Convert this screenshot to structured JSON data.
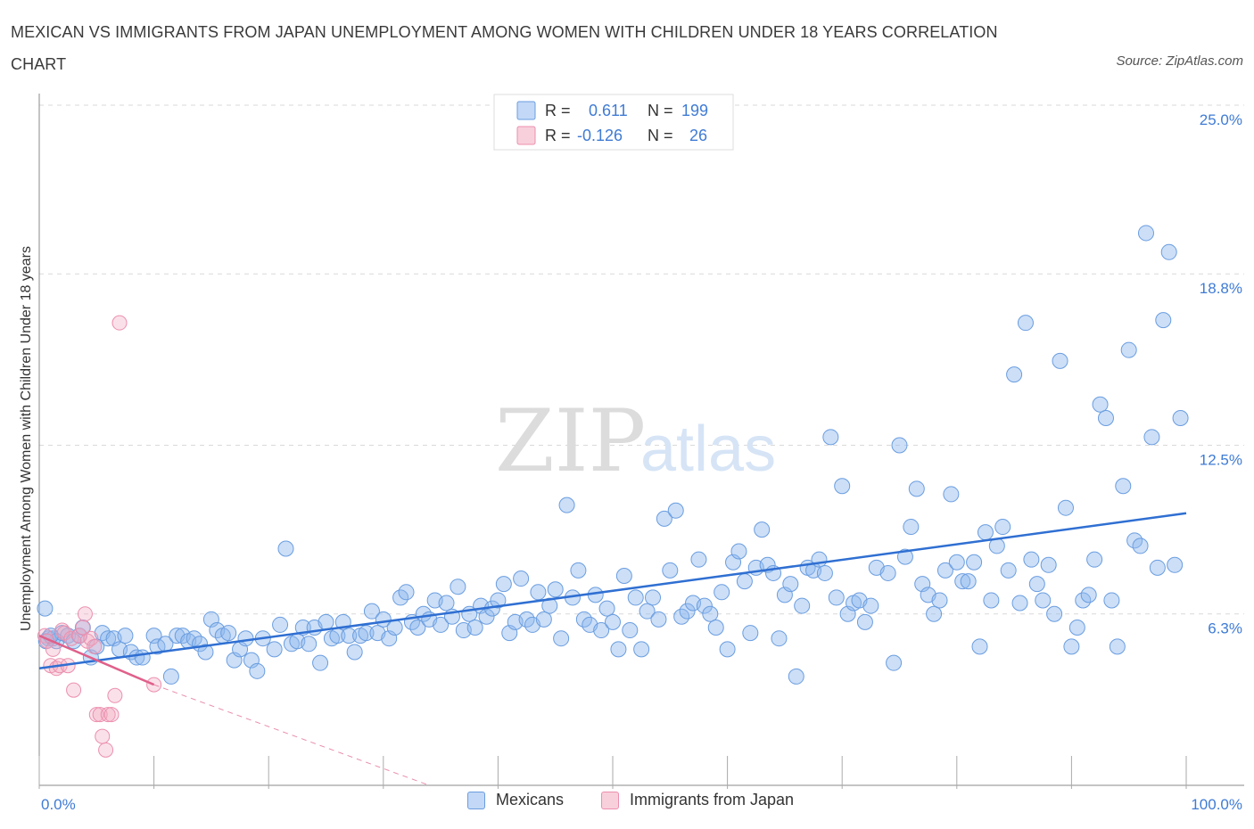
{
  "title": "MEXICAN VS IMMIGRANTS FROM JAPAN UNEMPLOYMENT AMONG WOMEN WITH CHILDREN UNDER 18 YEARS CORRELATION CHART",
  "source": "Source: ZipAtlas.com",
  "watermark": {
    "zip": "ZIP",
    "atlas": "atlas"
  },
  "legend": {
    "rows": [
      {
        "r_label": "R =",
        "r_value": "0.611",
        "n_label": "N =",
        "n_value": "199",
        "color": "#8fb8ee"
      },
      {
        "r_label": "R =",
        "r_value": "-0.126",
        "n_label": "N =",
        "n_value": "26",
        "color": "#f2a9c0"
      }
    ]
  },
  "bottom_legend": [
    {
      "label": "Mexicans",
      "color": "#8fb8ee"
    },
    {
      "label": "Immigrants from Japan",
      "color": "#f2a9c0"
    }
  ],
  "colors": {
    "blue_fill": "rgba(143,184,238,0.45)",
    "blue_stroke": "#6a9de0",
    "blue_line": "#2f6fd2",
    "pink_fill": "rgba(242,169,192,0.35)",
    "pink_stroke": "#ec8fae",
    "pink_line": "#e0608a",
    "accent_text": "#3f7bd4",
    "grid": "#d9d9d9"
  },
  "chart_data": {
    "type": "scatter",
    "title": "MEXICAN VS IMMIGRANTS FROM JAPAN UNEMPLOYMENT AMONG WOMEN WITH CHILDREN UNDER 18 YEARS CORRELATION CHART",
    "xlabel": "",
    "ylabel": "Unemployment Among Women with Children Under 18 years",
    "xlim": [
      0,
      100
    ],
    "ylim": [
      0,
      25
    ],
    "x_tick_labels": [
      "0.0%",
      "100.0%"
    ],
    "y_ticks": [
      6.3,
      12.5,
      18.8,
      25.0
    ],
    "y_tick_labels": [
      "6.3%",
      "12.5%",
      "18.8%",
      "25.0%"
    ],
    "grid": true,
    "legend_position": "top-center",
    "series": [
      {
        "name": "Mexicans",
        "R": 0.611,
        "N": 199,
        "trend": {
          "x": [
            0,
            100
          ],
          "y": [
            4.3,
            10.0
          ]
        },
        "points": [
          [
            0.5,
            6.5
          ],
          [
            0.8,
            5.4
          ],
          [
            1.2,
            5.4
          ],
          [
            1.5,
            5.3
          ],
          [
            2.0,
            5.6
          ],
          [
            2.5,
            5.5
          ],
          [
            3.0,
            5.3
          ],
          [
            3.5,
            5.5
          ],
          [
            3.8,
            5.8
          ],
          [
            4.5,
            4.7
          ],
          [
            5.0,
            5.1
          ],
          [
            5.5,
            5.6
          ],
          [
            6.0,
            5.4
          ],
          [
            6.5,
            5.4
          ],
          [
            7.0,
            5.0
          ],
          [
            7.5,
            5.5
          ],
          [
            8.0,
            4.9
          ],
          [
            8.5,
            4.7
          ],
          [
            9.0,
            4.7
          ],
          [
            10.0,
            5.5
          ],
          [
            10.3,
            5.1
          ],
          [
            11.0,
            5.2
          ],
          [
            11.5,
            4.0
          ],
          [
            12.0,
            5.5
          ],
          [
            12.5,
            5.5
          ],
          [
            13.0,
            5.3
          ],
          [
            13.5,
            5.4
          ],
          [
            14.0,
            5.2
          ],
          [
            14.5,
            4.9
          ],
          [
            15.0,
            6.1
          ],
          [
            15.5,
            5.7
          ],
          [
            16.0,
            5.5
          ],
          [
            16.5,
            5.6
          ],
          [
            17.0,
            4.6
          ],
          [
            17.5,
            5.0
          ],
          [
            18.0,
            5.4
          ],
          [
            18.5,
            4.6
          ],
          [
            19.0,
            4.2
          ],
          [
            19.5,
            5.4
          ],
          [
            20.5,
            5.0
          ],
          [
            21.0,
            5.9
          ],
          [
            21.5,
            8.7
          ],
          [
            22.0,
            5.2
          ],
          [
            22.5,
            5.3
          ],
          [
            23.0,
            5.8
          ],
          [
            23.5,
            5.2
          ],
          [
            24.0,
            5.8
          ],
          [
            24.5,
            4.5
          ],
          [
            25.0,
            6.0
          ],
          [
            25.5,
            5.4
          ],
          [
            26.0,
            5.5
          ],
          [
            26.5,
            6.0
          ],
          [
            27.0,
            5.5
          ],
          [
            27.5,
            4.9
          ],
          [
            28.0,
            5.5
          ],
          [
            28.5,
            5.6
          ],
          [
            29.0,
            6.4
          ],
          [
            29.5,
            5.6
          ],
          [
            30.0,
            6.1
          ],
          [
            30.5,
            5.4
          ],
          [
            31.0,
            5.8
          ],
          [
            31.5,
            6.9
          ],
          [
            32.0,
            7.1
          ],
          [
            32.5,
            6.0
          ],
          [
            33.0,
            5.8
          ],
          [
            33.5,
            6.3
          ],
          [
            34.0,
            6.1
          ],
          [
            34.5,
            6.8
          ],
          [
            35.0,
            5.9
          ],
          [
            35.5,
            6.7
          ],
          [
            36.0,
            6.2
          ],
          [
            36.5,
            7.3
          ],
          [
            37.0,
            5.7
          ],
          [
            37.5,
            6.3
          ],
          [
            38.0,
            5.8
          ],
          [
            38.5,
            6.6
          ],
          [
            39.0,
            6.2
          ],
          [
            39.5,
            6.5
          ],
          [
            40.0,
            6.8
          ],
          [
            40.5,
            7.4
          ],
          [
            41.0,
            5.6
          ],
          [
            41.5,
            6.0
          ],
          [
            42.0,
            7.6
          ],
          [
            42.5,
            6.1
          ],
          [
            43.0,
            5.9
          ],
          [
            43.5,
            7.1
          ],
          [
            44.0,
            6.1
          ],
          [
            44.5,
            6.6
          ],
          [
            45.0,
            7.2
          ],
          [
            45.5,
            5.4
          ],
          [
            46.0,
            10.3
          ],
          [
            46.5,
            6.9
          ],
          [
            47.0,
            7.9
          ],
          [
            47.5,
            6.1
          ],
          [
            48.0,
            5.9
          ],
          [
            48.5,
            7.0
          ],
          [
            49.0,
            5.7
          ],
          [
            49.5,
            6.5
          ],
          [
            50.0,
            6.0
          ],
          [
            50.5,
            5.0
          ],
          [
            51.0,
            7.7
          ],
          [
            51.5,
            5.7
          ],
          [
            52.0,
            6.9
          ],
          [
            52.5,
            5.0
          ],
          [
            53.0,
            6.4
          ],
          [
            53.5,
            6.9
          ],
          [
            54.0,
            6.1
          ],
          [
            54.5,
            9.8
          ],
          [
            55.0,
            7.9
          ],
          [
            55.5,
            10.1
          ],
          [
            56.0,
            6.2
          ],
          [
            56.5,
            6.4
          ],
          [
            57.0,
            6.7
          ],
          [
            57.5,
            8.3
          ],
          [
            58.0,
            6.6
          ],
          [
            58.5,
            6.3
          ],
          [
            59.0,
            5.8
          ],
          [
            59.5,
            7.1
          ],
          [
            60.0,
            5.0
          ],
          [
            60.5,
            8.2
          ],
          [
            61.0,
            8.6
          ],
          [
            61.5,
            7.5
          ],
          [
            62.0,
            5.6
          ],
          [
            62.5,
            8.0
          ],
          [
            63.0,
            9.4
          ],
          [
            63.5,
            8.1
          ],
          [
            64.0,
            7.8
          ],
          [
            64.5,
            5.4
          ],
          [
            65.0,
            7.0
          ],
          [
            65.5,
            7.4
          ],
          [
            66.0,
            4.0
          ],
          [
            66.5,
            6.6
          ],
          [
            67.0,
            8.0
          ],
          [
            67.5,
            7.9
          ],
          [
            68.0,
            8.3
          ],
          [
            68.5,
            7.8
          ],
          [
            69.0,
            12.8
          ],
          [
            69.5,
            6.9
          ],
          [
            70.0,
            11.0
          ],
          [
            70.5,
            6.3
          ],
          [
            71.0,
            6.7
          ],
          [
            71.5,
            6.8
          ],
          [
            72.0,
            6.0
          ],
          [
            72.5,
            6.6
          ],
          [
            73.0,
            8.0
          ],
          [
            74.0,
            7.8
          ],
          [
            74.5,
            4.5
          ],
          [
            75.0,
            12.5
          ],
          [
            75.5,
            8.4
          ],
          [
            76.0,
            9.5
          ],
          [
            76.5,
            10.9
          ],
          [
            77.0,
            7.4
          ],
          [
            77.5,
            7.0
          ],
          [
            78.0,
            6.3
          ],
          [
            78.5,
            6.8
          ],
          [
            79.0,
            7.9
          ],
          [
            79.5,
            10.7
          ],
          [
            80.0,
            8.2
          ],
          [
            80.5,
            7.5
          ],
          [
            81.0,
            7.5
          ],
          [
            81.5,
            8.2
          ],
          [
            82.0,
            5.1
          ],
          [
            82.5,
            9.3
          ],
          [
            83.0,
            6.8
          ],
          [
            83.5,
            8.8
          ],
          [
            84.0,
            9.5
          ],
          [
            84.5,
            7.9
          ],
          [
            85.0,
            15.1
          ],
          [
            85.5,
            6.7
          ],
          [
            86.0,
            17.0
          ],
          [
            86.5,
            8.3
          ],
          [
            87.0,
            7.4
          ],
          [
            87.5,
            6.8
          ],
          [
            88.0,
            8.1
          ],
          [
            88.5,
            6.3
          ],
          [
            89.0,
            15.6
          ],
          [
            89.5,
            10.2
          ],
          [
            90.0,
            5.1
          ],
          [
            90.5,
            5.8
          ],
          [
            91.0,
            6.8
          ],
          [
            91.5,
            7.0
          ],
          [
            92.0,
            8.3
          ],
          [
            92.5,
            14.0
          ],
          [
            93.0,
            13.5
          ],
          [
            93.5,
            6.8
          ],
          [
            94.0,
            5.1
          ],
          [
            94.5,
            11.0
          ],
          [
            95.0,
            16.0
          ],
          [
            95.5,
            9.0
          ],
          [
            96.0,
            8.8
          ],
          [
            96.5,
            20.3
          ],
          [
            97.0,
            12.8
          ],
          [
            97.5,
            8.0
          ],
          [
            98.0,
            17.1
          ],
          [
            98.5,
            19.6
          ],
          [
            99.0,
            8.1
          ],
          [
            99.5,
            13.5
          ],
          [
            0.6,
            5.3
          ],
          [
            1.0,
            5.5
          ]
        ]
      },
      {
        "name": "Immigrants from Japan",
        "R": -0.126,
        "N": 26,
        "trend": {
          "x": [
            0,
            10
          ],
          "y": [
            5.5,
            3.7
          ]
        },
        "trend_extension": {
          "x": [
            10,
            34
          ],
          "y": [
            3.7,
            0
          ]
        },
        "points": [
          [
            0.5,
            5.5
          ],
          [
            0.7,
            5.3
          ],
          [
            1.0,
            4.4
          ],
          [
            1.2,
            5.0
          ],
          [
            1.5,
            4.3
          ],
          [
            1.8,
            4.4
          ],
          [
            2.0,
            5.7
          ],
          [
            2.2,
            5.6
          ],
          [
            2.5,
            4.4
          ],
          [
            2.8,
            5.4
          ],
          [
            3.0,
            3.5
          ],
          [
            3.5,
            5.5
          ],
          [
            3.8,
            5.8
          ],
          [
            4.0,
            6.3
          ],
          [
            4.2,
            5.3
          ],
          [
            4.5,
            5.4
          ],
          [
            4.8,
            5.1
          ],
          [
            5.0,
            2.6
          ],
          [
            5.3,
            2.6
          ],
          [
            5.5,
            1.8
          ],
          [
            5.8,
            1.3
          ],
          [
            6.0,
            2.6
          ],
          [
            6.3,
            2.6
          ],
          [
            6.6,
            3.3
          ],
          [
            7.0,
            17.0
          ],
          [
            10.0,
            3.7
          ]
        ]
      }
    ]
  }
}
